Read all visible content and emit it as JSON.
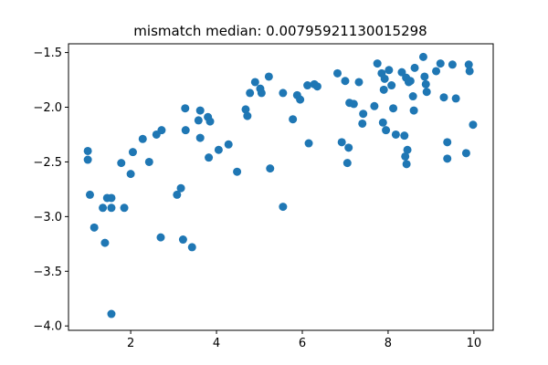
{
  "chart_data": {
    "type": "scatter",
    "title": "mismatch median: 0.00795921130015298",
    "xlabel": "",
    "ylabel": "",
    "xlim": [
      0.55,
      10.45
    ],
    "ylim": [
      -4.04,
      -1.42
    ],
    "xticks": [
      2,
      4,
      6,
      8,
      10
    ],
    "yticks": [
      -4.0,
      -3.5,
      -3.0,
      -2.5,
      -2.0,
      -1.5
    ],
    "xtick_labels": [
      "2",
      "4",
      "6",
      "8",
      "10"
    ],
    "ytick_labels": [
      "−4.0",
      "−3.5",
      "−3.0",
      "−2.5",
      "−2.0",
      "−1.5"
    ],
    "grid": false,
    "marker_color": "#1f77b4",
    "points": [
      [
        1.0,
        -2.4
      ],
      [
        1.0,
        -2.48
      ],
      [
        1.05,
        -2.8
      ],
      [
        1.15,
        -3.1
      ],
      [
        1.35,
        -2.92
      ],
      [
        1.4,
        -3.24
      ],
      [
        1.45,
        -2.83
      ],
      [
        1.55,
        -2.83
      ],
      [
        1.55,
        -2.92
      ],
      [
        1.55,
        -3.89
      ],
      [
        1.78,
        -2.51
      ],
      [
        1.85,
        -2.92
      ],
      [
        2.0,
        -2.61
      ],
      [
        2.05,
        -2.41
      ],
      [
        2.28,
        -2.29
      ],
      [
        2.43,
        -2.5
      ],
      [
        2.6,
        -2.25
      ],
      [
        2.7,
        -3.19
      ],
      [
        2.72,
        -2.21
      ],
      [
        3.08,
        -2.8
      ],
      [
        3.17,
        -2.74
      ],
      [
        3.22,
        -3.21
      ],
      [
        3.27,
        -2.01
      ],
      [
        3.28,
        -2.21
      ],
      [
        3.43,
        -3.28
      ],
      [
        3.58,
        -2.12
      ],
      [
        3.62,
        -2.03
      ],
      [
        3.62,
        -2.28
      ],
      [
        3.8,
        -2.09
      ],
      [
        3.82,
        -2.46
      ],
      [
        3.85,
        -2.13
      ],
      [
        4.05,
        -2.39
      ],
      [
        4.28,
        -2.34
      ],
      [
        4.48,
        -2.59
      ],
      [
        4.68,
        -2.02
      ],
      [
        4.72,
        -2.08
      ],
      [
        4.78,
        -1.87
      ],
      [
        4.9,
        -1.77
      ],
      [
        5.02,
        -1.83
      ],
      [
        5.05,
        -1.87
      ],
      [
        5.22,
        -1.72
      ],
      [
        5.25,
        -2.56
      ],
      [
        5.55,
        -1.87
      ],
      [
        5.55,
        -2.91
      ],
      [
        5.78,
        -2.11
      ],
      [
        5.88,
        -1.89
      ],
      [
        5.95,
        -1.93
      ],
      [
        6.12,
        -1.8
      ],
      [
        6.15,
        -2.33
      ],
      [
        6.28,
        -1.79
      ],
      [
        6.35,
        -1.81
      ],
      [
        6.82,
        -1.69
      ],
      [
        6.92,
        -2.32
      ],
      [
        7.0,
        -1.76
      ],
      [
        7.05,
        -2.51
      ],
      [
        7.08,
        -2.37
      ],
      [
        7.1,
        -1.96
      ],
      [
        7.2,
        -1.97
      ],
      [
        7.32,
        -1.77
      ],
      [
        7.4,
        -2.15
      ],
      [
        7.42,
        -2.06
      ],
      [
        7.68,
        -1.99
      ],
      [
        7.75,
        -1.6
      ],
      [
        7.85,
        -1.69
      ],
      [
        7.88,
        -2.14
      ],
      [
        7.9,
        -1.84
      ],
      [
        7.92,
        -1.74
      ],
      [
        7.95,
        -2.21
      ],
      [
        8.02,
        -1.66
      ],
      [
        8.08,
        -1.8
      ],
      [
        8.12,
        -2.01
      ],
      [
        8.18,
        -2.25
      ],
      [
        8.32,
        -1.68
      ],
      [
        8.38,
        -2.26
      ],
      [
        8.4,
        -2.45
      ],
      [
        8.42,
        -1.73
      ],
      [
        8.43,
        -2.52
      ],
      [
        8.45,
        -2.39
      ],
      [
        8.48,
        -1.77
      ],
      [
        8.52,
        -1.76
      ],
      [
        8.58,
        -1.9
      ],
      [
        8.6,
        -2.03
      ],
      [
        8.62,
        -1.64
      ],
      [
        8.82,
        -1.54
      ],
      [
        8.85,
        -1.72
      ],
      [
        8.88,
        -1.79
      ],
      [
        8.9,
        -1.86
      ],
      [
        9.12,
        -1.67
      ],
      [
        9.22,
        -1.6
      ],
      [
        9.3,
        -1.91
      ],
      [
        9.38,
        -2.32
      ],
      [
        9.38,
        -2.47
      ],
      [
        9.5,
        -1.61
      ],
      [
        9.58,
        -1.92
      ],
      [
        9.82,
        -2.42
      ],
      [
        9.88,
        -1.61
      ],
      [
        9.9,
        -1.67
      ],
      [
        9.98,
        -2.16
      ]
    ]
  }
}
